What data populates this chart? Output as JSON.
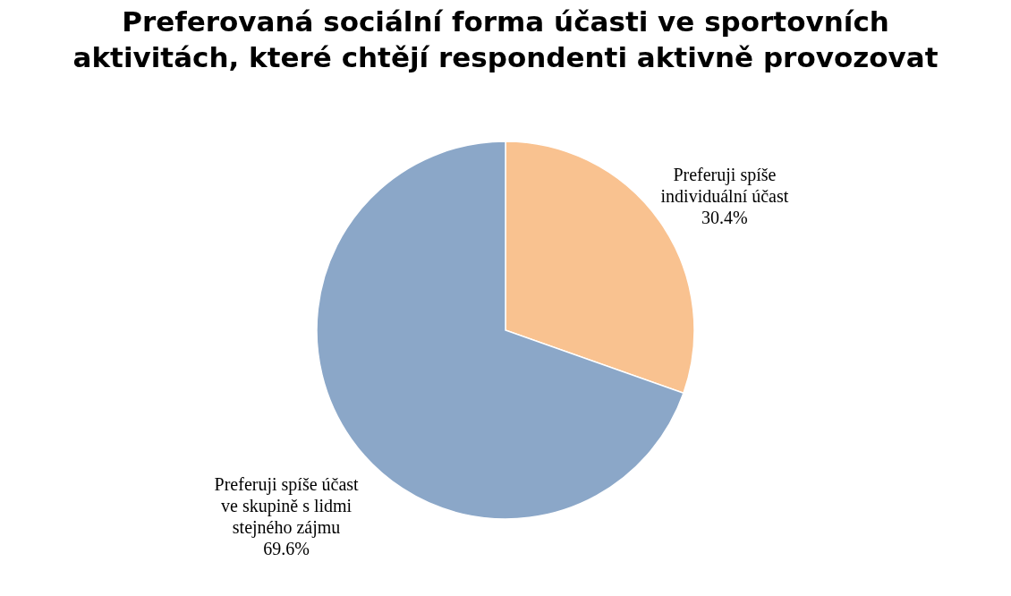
{
  "chart_data": {
    "type": "pie",
    "title": "Preferovaná sociální forma účasti ve sportovních aktivitách, které chtějí respondenti aktivně provozovat",
    "categories": [
      "Preferuji spíše individuální účast",
      "Preferuji spíše účast ve skupině s lidmi stejného zájmu"
    ],
    "values": [
      30.4,
      69.6
    ],
    "colors": [
      "#f9c290",
      "#8ba7c8"
    ],
    "value_labels": [
      "30.4%",
      "69.6%"
    ],
    "legend": false
  }
}
